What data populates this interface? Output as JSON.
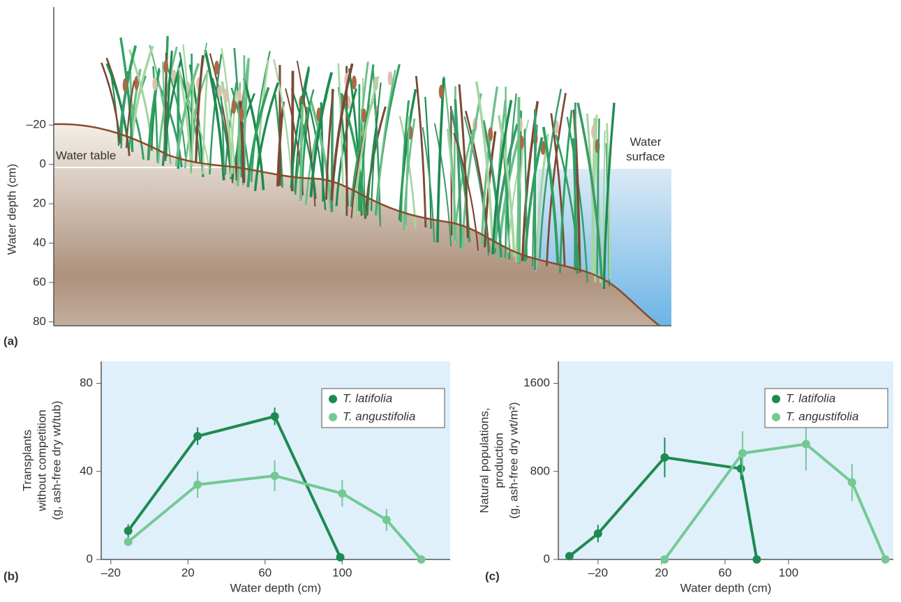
{
  "chart_data": [
    {
      "type": "illustration",
      "panel": "(a)",
      "y_label": "Water depth (cm)",
      "ylim": [
        -80,
        82
      ],
      "yticks": [
        {
          "value": -20,
          "label": "–20"
        },
        0,
        20,
        40,
        60,
        80
      ],
      "annotations": [
        "Water table",
        "Water surface"
      ]
    },
    {
      "type": "line",
      "panel": "(b)",
      "x_label": "Water depth (cm)",
      "y_label": [
        "Transplants",
        "without competition",
        "(g, ash-free dry wt/tub)"
      ],
      "xlim": [
        -25,
        156
      ],
      "ylim": [
        0,
        90
      ],
      "xticks": [
        {
          "value": -20,
          "label": "–20"
        },
        20,
        60,
        100
      ],
      "yticks": [
        0,
        40,
        80
      ],
      "legend": "upper right",
      "series": [
        {
          "name": "T. latifolia",
          "color": "#1e8a50",
          "x": [
            -11,
            25,
            65,
            99
          ],
          "values": [
            13,
            56,
            65,
            1
          ],
          "errors": [
            3,
            4,
            4,
            null
          ]
        },
        {
          "name": "T. angustifolia",
          "color": "#74c993",
          "x": [
            -11,
            25,
            65,
            100,
            123,
            141
          ],
          "values": [
            8,
            34,
            38,
            30,
            18,
            0
          ],
          "errors": [
            null,
            6,
            7,
            6,
            5,
            null
          ]
        }
      ]
    },
    {
      "type": "line",
      "panel": "(c)",
      "x_label": "Water depth (cm)",
      "y_label": [
        "Natural populations,",
        "production",
        "(g, ash-free dry wt/m²)"
      ],
      "xlim": [
        -45,
        166
      ],
      "ylim": [
        0,
        1800
      ],
      "xticks": [
        {
          "value": -20,
          "label": "–20"
        },
        20,
        60,
        100
      ],
      "yticks": [
        0,
        800,
        1600
      ],
      "legend": "upper right",
      "series": [
        {
          "name": "T. latifolia",
          "color": "#1e8a50",
          "x": [
            -38,
            -20,
            22,
            70,
            80
          ],
          "values": [
            30,
            235,
            927,
            825,
            0
          ],
          "errors": [
            null,
            80,
            180,
            100,
            null
          ]
        },
        {
          "name": "T. angustifolia",
          "color": "#74c993",
          "x": [
            22,
            71,
            111,
            140,
            161
          ],
          "values": [
            0,
            965,
            1048,
            700,
            0
          ],
          "errors": [
            null,
            200,
            240,
            170,
            null
          ]
        }
      ]
    }
  ]
}
